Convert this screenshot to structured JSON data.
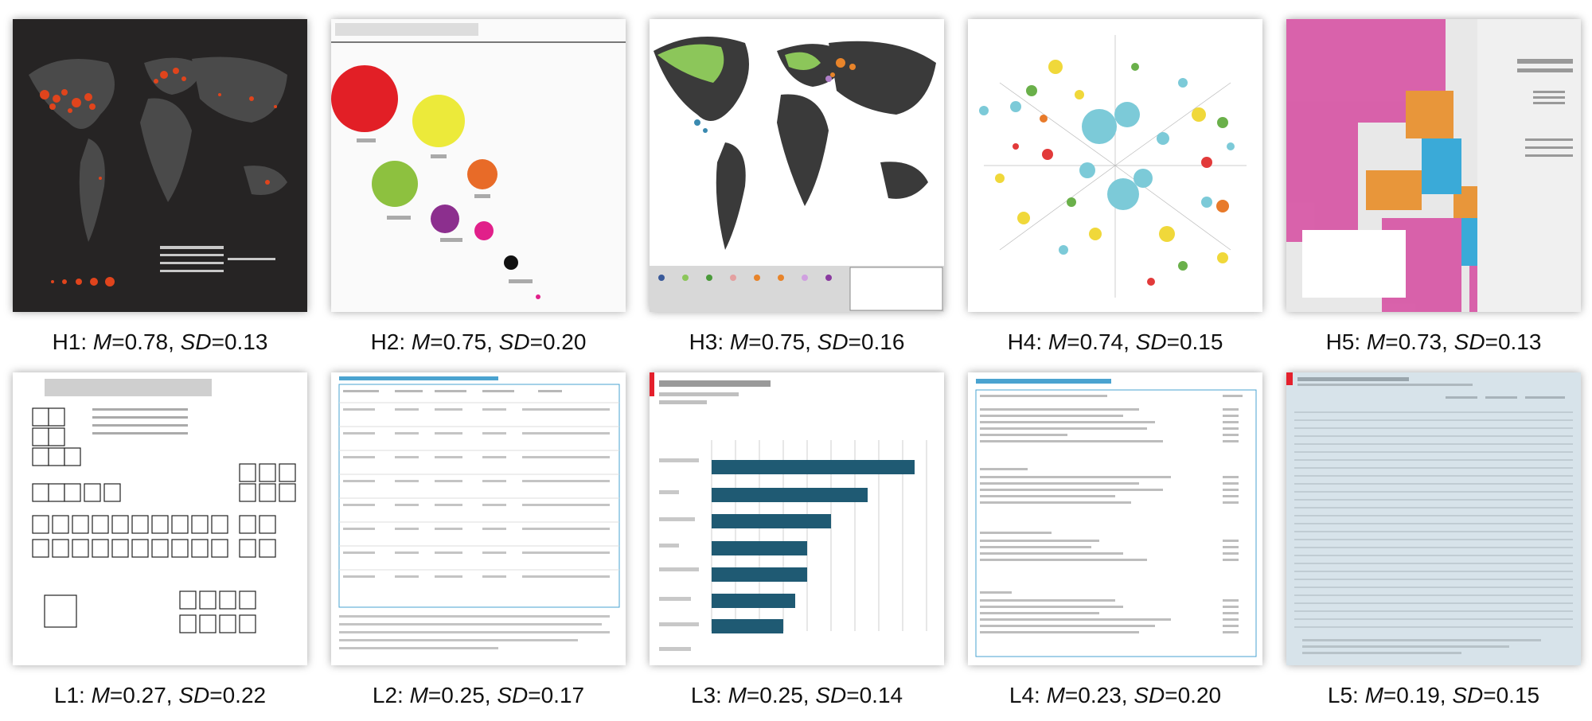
{
  "figures": [
    {
      "id": "H1",
      "M": "0.78",
      "SD": "0.13",
      "thumb": "world-map-dark-orange-dots"
    },
    {
      "id": "H2",
      "M": "0.75",
      "SD": "0.20",
      "thumb": "bubble-chart-fatality-rates"
    },
    {
      "id": "H3",
      "M": "0.75",
      "SD": "0.16",
      "thumb": "world-map-language-dots"
    },
    {
      "id": "H4",
      "M": "0.74",
      "SD": "0.15",
      "thumb": "radial-bubble-network"
    },
    {
      "id": "H5",
      "M": "0.73",
      "SD": "0.13",
      "thumb": "city-map-taxonomy"
    },
    {
      "id": "L1",
      "M": "0.27",
      "SD": "0.22",
      "thumb": "periodic-table-beer-styles"
    },
    {
      "id": "L2",
      "M": "0.25",
      "SD": "0.17",
      "thumb": "radon-mitigation-table"
    },
    {
      "id": "L3",
      "M": "0.25",
      "SD": "0.14",
      "thumb": "horizontal-bar-chart"
    },
    {
      "id": "L4",
      "M": "0.23",
      "SD": "0.20",
      "thumb": "cost-effectiveness-inputs-table"
    },
    {
      "id": "L5",
      "M": "0.19",
      "SD": "0.15",
      "thumb": "light-blue-data-table"
    }
  ],
  "colors": {
    "bg": "#ffffff",
    "text": "#111111",
    "dark_map": "#2b2b2b",
    "accent_red": "#e4202c",
    "bar": "#1f5a73"
  }
}
